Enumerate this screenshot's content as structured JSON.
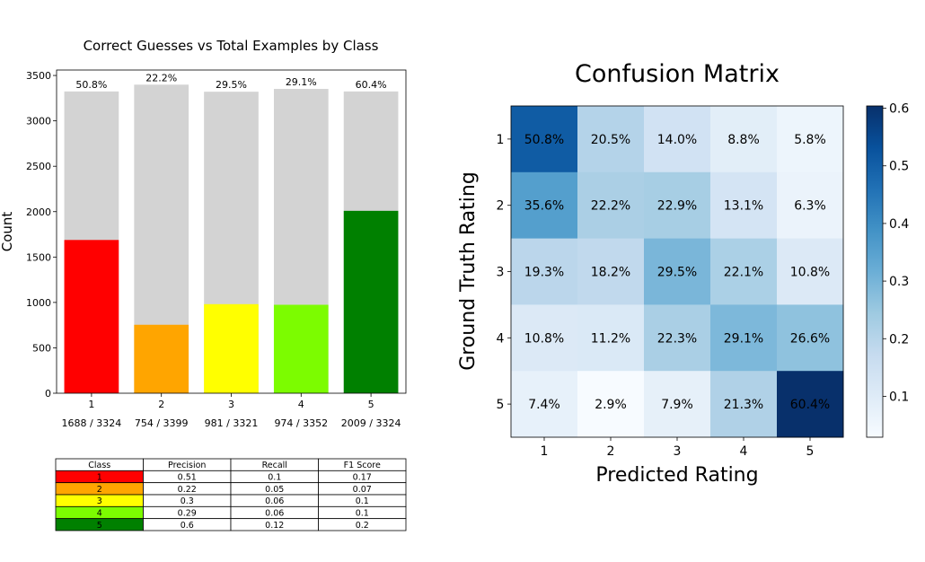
{
  "chart_data": [
    {
      "type": "bar",
      "title": "Correct Guesses vs Total Examples by Class",
      "xlabel": "",
      "ylabel": "Count",
      "ylim": [
        0,
        3560
      ],
      "yticks": [
        "0",
        "500",
        "1000",
        "1500",
        "2000",
        "2500",
        "3000",
        "3500"
      ],
      "grid": false,
      "categories": [
        "1",
        "2",
        "3",
        "4",
        "5"
      ],
      "totals": [
        3324,
        3399,
        3321,
        3352,
        3324
      ],
      "correct": [
        1688,
        754,
        981,
        974,
        2009
      ],
      "percent_labels": [
        "50.8%",
        "22.2%",
        "29.5%",
        "29.1%",
        "60.4%"
      ],
      "count_labels": [
        "1688 / 3324",
        "754 / 3399",
        "981 / 3321",
        "974 / 3352",
        "2009 / 3324"
      ],
      "colors": {
        "total": "#d3d3d3",
        "classes": [
          "#ff0000",
          "#ffa500",
          "#ffff00",
          "#7cfc00",
          "#008000"
        ]
      }
    },
    {
      "type": "table",
      "columns": [
        "Class",
        "Precision",
        "Recall",
        "F1 Score"
      ],
      "rows": [
        [
          "1",
          "0.51",
          "0.1",
          "0.17"
        ],
        [
          "2",
          "0.22",
          "0.05",
          "0.07"
        ],
        [
          "3",
          "0.3",
          "0.06",
          "0.1"
        ],
        [
          "4",
          "0.29",
          "0.06",
          "0.1"
        ],
        [
          "5",
          "0.6",
          "0.12",
          "0.2"
        ]
      ],
      "row_colors": [
        "#ff0000",
        "#ffa500",
        "#ffff00",
        "#7cfc00",
        "#008000"
      ]
    },
    {
      "type": "heatmap",
      "title": "Confusion Matrix",
      "xlabel": "Predicted Rating",
      "ylabel": "Ground Truth Rating",
      "x": [
        "1",
        "2",
        "3",
        "4",
        "5"
      ],
      "y": [
        "1",
        "2",
        "3",
        "4",
        "5"
      ],
      "values": [
        [
          50.8,
          20.5,
          14.0,
          8.8,
          5.8
        ],
        [
          35.6,
          22.2,
          22.9,
          13.1,
          6.3
        ],
        [
          19.3,
          18.2,
          29.5,
          22.1,
          10.8
        ],
        [
          10.8,
          11.2,
          22.3,
          29.1,
          26.6
        ],
        [
          7.4,
          2.9,
          7.9,
          21.3,
          60.4
        ]
      ],
      "cell_labels": [
        [
          "50.8%",
          "20.5%",
          "14.0%",
          "8.8%",
          "5.8%"
        ],
        [
          "35.6%",
          "22.2%",
          "22.9%",
          "13.1%",
          "6.3%"
        ],
        [
          "19.3%",
          "18.2%",
          "29.5%",
          "22.1%",
          "10.8%"
        ],
        [
          "10.8%",
          "11.2%",
          "22.3%",
          "29.1%",
          "26.6%"
        ],
        [
          "7.4%",
          "2.9%",
          "7.9%",
          "21.3%",
          "60.4%"
        ]
      ],
      "colormap": "Blues",
      "colorbar": {
        "range": [
          0.029,
          0.604
        ],
        "ticks": [
          "0.1",
          "0.2",
          "0.3",
          "0.4",
          "0.5",
          "0.6"
        ]
      }
    }
  ]
}
